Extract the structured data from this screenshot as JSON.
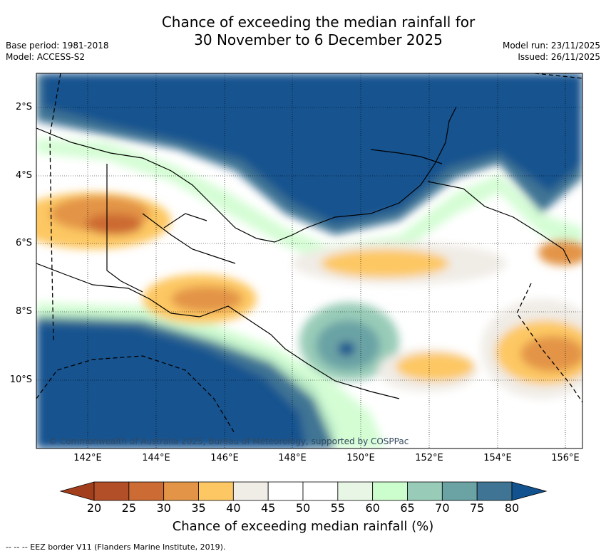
{
  "title": {
    "line1": "Chance of exceeding the median rainfall for",
    "line2": "30 November to 6 December 2025"
  },
  "meta_left": {
    "base_period": "Base period: 1981-2018",
    "model": "Model: ACCESS-S2"
  },
  "meta_right": {
    "model_run": "Model run: 23/11/2025",
    "issued": "Issued: 26/11/2025"
  },
  "axes": {
    "lat_labels": [
      "2°S",
      "4°S",
      "6°S",
      "8°S",
      "10°S"
    ],
    "lon_labels": [
      "142°E",
      "144°E",
      "146°E",
      "148°E",
      "150°E",
      "152°E",
      "154°E",
      "156°E"
    ]
  },
  "credit": "© Commonwealth of Australia 2025, Bureau of Meteorology, supported by COSPPac",
  "colorbar": {
    "ticks": [
      "20",
      "25",
      "30",
      "35",
      "40",
      "45",
      "50",
      "55",
      "60",
      "65",
      "70",
      "75",
      "80"
    ],
    "colors": [
      "#a33e1c",
      "#b24f28",
      "#cc6b33",
      "#e39447",
      "#fdc864",
      "#f0ece6",
      "#ffffff",
      "#ffffff",
      "#e8f7e5",
      "#ccfdcc",
      "#99ccb8",
      "#6ba3a5",
      "#3f7494",
      "#12528f"
    ],
    "label": "Chance of exceeding median rainfall (%)"
  },
  "footer": "--  --  -- EEZ border V11 (Flanders Marine Institute, 2019)."
}
